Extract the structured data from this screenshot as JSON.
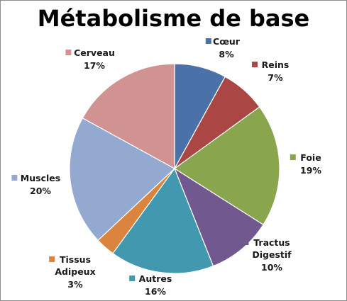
{
  "chart_data": {
    "type": "pie",
    "title": "Métabolisme de base",
    "slices": [
      {
        "label": [
          "Cœur"
        ],
        "value": 8,
        "pct": "8%",
        "color": "#4a72a8"
      },
      {
        "label": [
          "Reins"
        ],
        "value": 7,
        "pct": "7%",
        "color": "#aa4644"
      },
      {
        "label": [
          "Foie"
        ],
        "value": 19,
        "pct": "19%",
        "color": "#89a54e"
      },
      {
        "label": [
          "Tractus",
          "Digestif"
        ],
        "value": 10,
        "pct": "10%",
        "color": "#71588f"
      },
      {
        "label": [
          "Autres"
        ],
        "value": 16,
        "pct": "16%",
        "color": "#4198af"
      },
      {
        "label": [
          "Tissus",
          "Adipeux"
        ],
        "value": 3,
        "pct": "3%",
        "color": "#db843d"
      },
      {
        "label": [
          "Muscles"
        ],
        "value": 20,
        "pct": "20%",
        "color": "#93a9cf"
      },
      {
        "label": [
          "Cerveau"
        ],
        "value": 17,
        "pct": "17%",
        "color": "#d19392"
      }
    ],
    "legend": "none",
    "data_labels": "outside-with-color-marker"
  }
}
